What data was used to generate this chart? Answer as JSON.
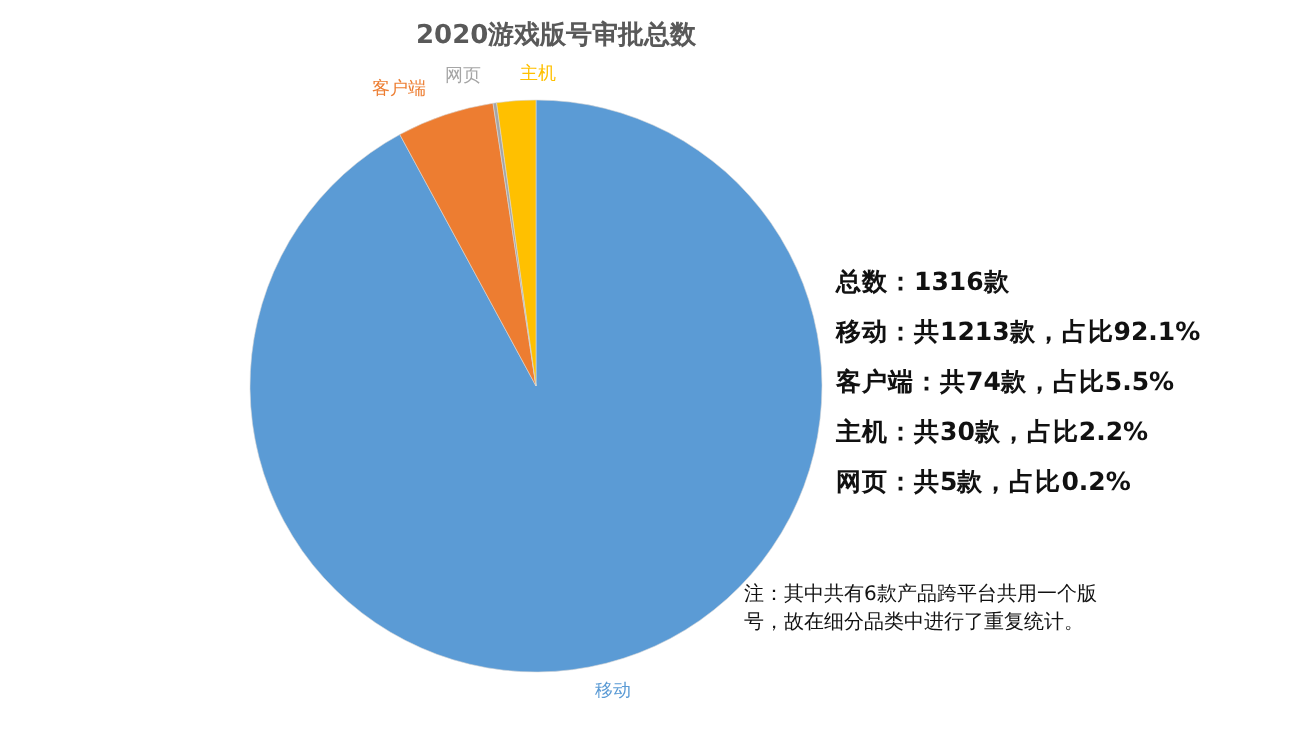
{
  "chart_data": {
    "type": "pie",
    "title": "2020游戏版号审批总数",
    "categories": [
      "移动",
      "客户端",
      "网页",
      "主机"
    ],
    "values": [
      92.1,
      5.5,
      0.2,
      2.2
    ],
    "colors": [
      "#5b9bd5",
      "#ed7d31",
      "#a5a5a5",
      "#ffc000"
    ],
    "legend": false,
    "annotations": [
      "总数：1316款",
      "移动：共1213款，占比92.1%",
      "客户端：共74款，占比5.5%",
      "主机：共30款，占比2.2%",
      "网页：共5款，占比0.2%",
      "注：其中共有6款产品跨平台共用一个版号，故在细分品类中进行了重复统计。"
    ]
  }
}
